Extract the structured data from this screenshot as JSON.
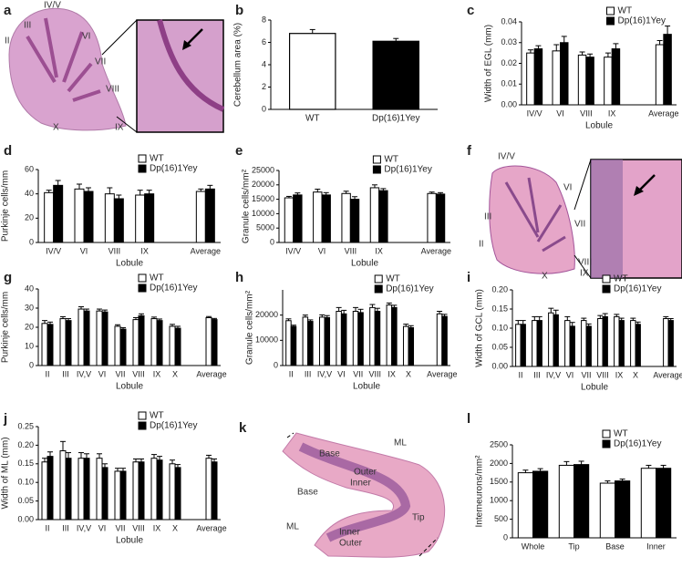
{
  "images": [
    {
      "label": "a",
      "labels": [
        "II",
        "III",
        "IV/V",
        "VI",
        "VII",
        "VIII",
        "IX",
        "X"
      ]
    },
    {
      "label": "f",
      "labels": [
        "IV/V",
        "VI",
        "III",
        "VII",
        "II",
        "VIII",
        "X",
        "IX"
      ]
    },
    {
      "label": "k",
      "labels": [
        "Base",
        "Outer",
        "Inner",
        "ML",
        "Base",
        "ML",
        "Inner",
        "Outer",
        "Tip"
      ]
    }
  ],
  "chart_data": [
    {
      "type": "bar",
      "label": "b",
      "ylabel": "Cerebellum area (%)",
      "categories": [
        "WT",
        "Dp(16)1Yey"
      ],
      "values": [
        6.8,
        6.1
      ],
      "errors": [
        0.35,
        0.25
      ],
      "colors": [
        "#ffffff",
        "#000000"
      ],
      "ylim": [
        0,
        8
      ],
      "yticks": [
        0,
        2,
        4,
        6,
        8
      ]
    },
    {
      "type": "grouped_bar",
      "label": "c",
      "ylabel": "Width of EGL (mm)",
      "xlabel": "Lobule",
      "categories": [
        "IV/V",
        "VI",
        "VIII",
        "IX",
        "Average"
      ],
      "series": [
        {
          "name": "WT",
          "color": "#ffffff",
          "values": [
            0.025,
            0.026,
            0.024,
            0.023,
            0.029
          ],
          "errors": [
            0.0015,
            0.003,
            0.0015,
            0.002,
            0.002
          ]
        },
        {
          "name": "Dp(16)1Yey",
          "color": "#000000",
          "values": [
            0.027,
            0.03,
            0.023,
            0.027,
            0.034
          ],
          "errors": [
            0.0015,
            0.003,
            0.0015,
            0.0025,
            0.004
          ]
        }
      ],
      "ylim": [
        0,
        0.04
      ],
      "yticks": [
        {
          "value": 0,
          "label": "0.00"
        },
        0.01,
        0.02,
        0.03,
        0.04
      ]
    },
    {
      "type": "grouped_bar",
      "label": "d",
      "ylabel": "Purkinje cells/mm",
      "xlabel": "Lobule",
      "categories": [
        "IV/V",
        "VI",
        "VIII",
        "IX",
        "Average"
      ],
      "series": [
        {
          "name": "WT",
          "color": "#ffffff",
          "values": [
            41,
            44,
            40,
            39,
            42
          ],
          "errors": [
            2,
            4,
            5,
            4,
            2
          ]
        },
        {
          "name": "Dp(16)1Yey",
          "color": "#000000",
          "values": [
            47,
            42,
            36,
            40,
            44
          ],
          "errors": [
            4,
            3,
            3,
            3,
            3
          ]
        }
      ],
      "ylim": [
        0,
        60
      ],
      "yticks": [
        0,
        20,
        40,
        60
      ]
    },
    {
      "type": "grouped_bar",
      "label": "e",
      "ylabel": "Granule cells/mm²",
      "xlabel": "Lobule",
      "categories": [
        "IV/V",
        "VI",
        "VIII",
        "IX",
        "Average"
      ],
      "series": [
        {
          "name": "WT",
          "color": "#ffffff",
          "values": [
            15500,
            17500,
            17000,
            19000,
            17000
          ],
          "errors": [
            500,
            1000,
            800,
            1000,
            500
          ]
        },
        {
          "name": "Dp(16)1Yey",
          "color": "#000000",
          "values": [
            16500,
            16500,
            15000,
            18000,
            16800
          ],
          "errors": [
            700,
            800,
            900,
            700,
            500
          ]
        }
      ],
      "ylim": [
        0,
        25000
      ],
      "yticks": [
        0,
        5000,
        10000,
        15000,
        20000,
        25000
      ]
    },
    {
      "type": "grouped_bar",
      "label": "g",
      "ylabel": "Purkinje cells/mm",
      "xlabel": "Lobule",
      "categories": [
        "II",
        "III",
        "IV,V",
        "VI",
        "VII",
        "VIII",
        "IX",
        "X",
        "Average"
      ],
      "series": [
        {
          "name": "WT",
          "color": "#ffffff",
          "values": [
            22,
            24.5,
            29.5,
            28.5,
            20.5,
            24,
            24.5,
            20.5,
            25
          ],
          "errors": [
            1.5,
            1,
            1.2,
            1,
            0.8,
            1,
            0.8,
            1,
            0.6
          ]
        },
        {
          "name": "Dp(16)1Yey",
          "color": "#000000",
          "values": [
            21.5,
            23.5,
            28.5,
            28,
            19,
            26,
            23.5,
            19.5,
            24
          ],
          "errors": [
            1.2,
            1,
            1,
            1,
            0.8,
            1,
            0.8,
            1,
            0.6
          ]
        }
      ],
      "ylim": [
        0,
        40
      ],
      "yticks": [
        0,
        10,
        20,
        30,
        40
      ]
    },
    {
      "type": "grouped_bar",
      "label": "h",
      "ylabel": "Granule cells/mm²",
      "xlabel": "Lobule",
      "categories": [
        "II",
        "III",
        "IV,V",
        "VI",
        "VII",
        "VIII",
        "IX",
        "X",
        "Average"
      ],
      "series": [
        {
          "name": "WT",
          "color": "#ffffff",
          "values": [
            17800,
            19200,
            19200,
            21500,
            21500,
            23000,
            24000,
            15500,
            20500
          ],
          "errors": [
            700,
            800,
            900,
            1500,
            1500,
            1200,
            800,
            900,
            1000
          ]
        },
        {
          "name": "Dp(16)1Yey",
          "color": "#000000",
          "values": [
            15500,
            17500,
            19000,
            20500,
            21000,
            21500,
            23000,
            15000,
            19500
          ],
          "errors": [
            500,
            600,
            800,
            1400,
            1300,
            1200,
            900,
            800,
            800
          ]
        }
      ],
      "ylim": [
        0,
        30000
      ],
      "yticks": [
        0,
        10000,
        20000
      ]
    },
    {
      "type": "grouped_bar",
      "label": "i",
      "ylabel": "Width of GCL (mm)",
      "xlabel": "Lobule",
      "categories": [
        "II",
        "III",
        "IV,V",
        "VI",
        "VII",
        "VIII",
        "IX",
        "X",
        "Average"
      ],
      "series": [
        {
          "name": "WT",
          "color": "#ffffff",
          "values": [
            0.11,
            0.12,
            0.14,
            0.12,
            0.12,
            0.125,
            0.13,
            0.12,
            0.125
          ],
          "errors": [
            0.01,
            0.01,
            0.012,
            0.01,
            0.006,
            0.008,
            0.006,
            0.006,
            0.005
          ]
        },
        {
          "name": "Dp(16)1Yey",
          "color": "#000000",
          "values": [
            0.11,
            0.12,
            0.135,
            0.105,
            0.105,
            0.13,
            0.12,
            0.11,
            0.12
          ],
          "errors": [
            0.01,
            0.01,
            0.012,
            0.01,
            0.006,
            0.008,
            0.006,
            0.006,
            0.005
          ]
        }
      ],
      "ylim": [
        0,
        0.2
      ],
      "yticks": [
        {
          "value": 0,
          "label": "0.00"
        },
        0.05,
        {
          "value": 0.1,
          "label": "0.10"
        },
        0.15,
        {
          "value": 0.2,
          "label": "0.20"
        }
      ]
    },
    {
      "type": "grouped_bar",
      "label": "j",
      "ylabel": "Width of ML (mm)",
      "xlabel": "Lobule",
      "categories": [
        "II",
        "III",
        "IV,V",
        "VI",
        "VII",
        "VIII",
        "IX",
        "X",
        "Average"
      ],
      "series": [
        {
          "name": "WT",
          "color": "#ffffff",
          "values": [
            0.155,
            0.185,
            0.165,
            0.165,
            0.13,
            0.155,
            0.165,
            0.15,
            0.165
          ],
          "errors": [
            0.01,
            0.025,
            0.015,
            0.012,
            0.008,
            0.008,
            0.01,
            0.01,
            0.008
          ]
        },
        {
          "name": "Dp(16)1Yey",
          "color": "#000000",
          "values": [
            0.17,
            0.165,
            0.165,
            0.14,
            0.13,
            0.155,
            0.16,
            0.14,
            0.155
          ],
          "errors": [
            0.012,
            0.015,
            0.012,
            0.01,
            0.008,
            0.008,
            0.01,
            0.008,
            0.008
          ]
        }
      ],
      "ylim": [
        0,
        0.25
      ],
      "yticks": [
        {
          "value": 0,
          "label": "0.00"
        },
        0.05,
        {
          "value": 0.1,
          "label": "0.10"
        },
        0.15,
        {
          "value": 0.2,
          "label": "0.20"
        },
        0.25
      ]
    },
    {
      "type": "grouped_bar",
      "label": "l",
      "ylabel": "Interneurons/mm²",
      "categories": [
        "Whole",
        "Tip",
        "Base",
        "Inner"
      ],
      "series": [
        {
          "name": "WT",
          "color": "#ffffff",
          "values": [
            1750,
            1950,
            1470,
            1870
          ],
          "errors": [
            70,
            100,
            60,
            80
          ]
        },
        {
          "name": "Dp(16)1Yey",
          "color": "#000000",
          "values": [
            1790,
            1970,
            1530,
            1870
          ],
          "errors": [
            70,
            90,
            50,
            80
          ]
        }
      ],
      "ylim": [
        0,
        2500
      ],
      "yticks": [
        0,
        500,
        1000,
        1500,
        2000,
        2500
      ]
    }
  ]
}
